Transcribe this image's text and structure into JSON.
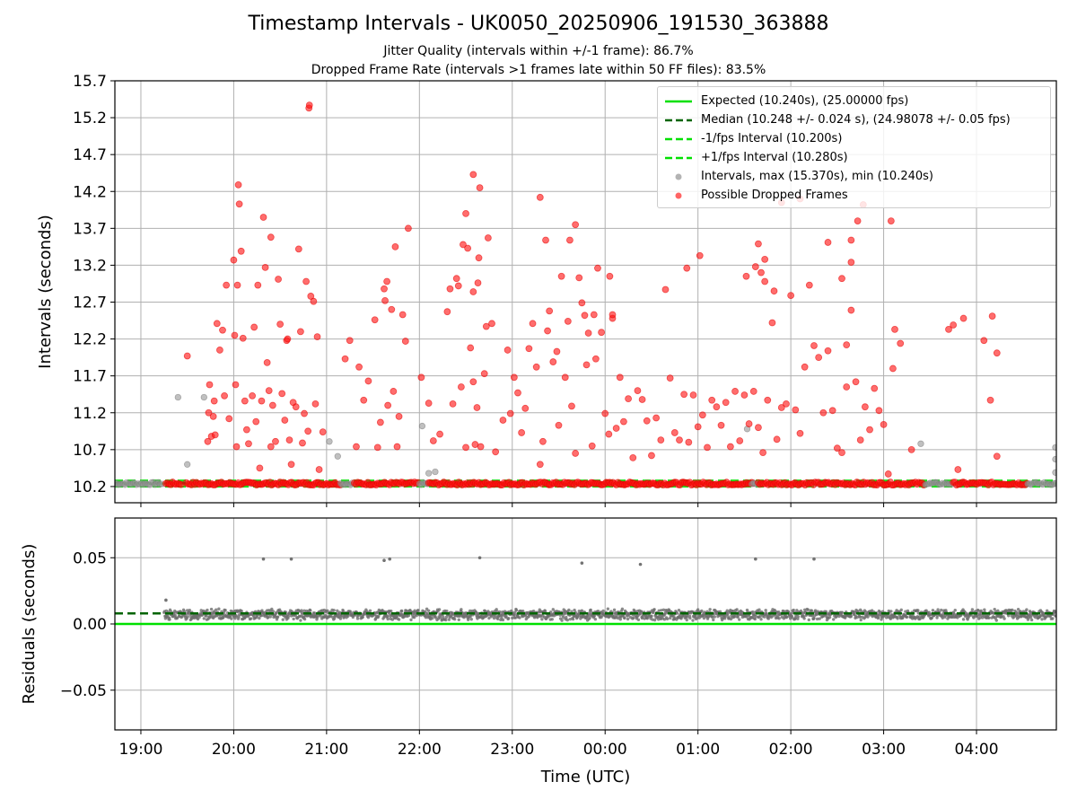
{
  "chart_data": [
    {
      "type": "scatter",
      "title": "Timestamp Intervals - UK0050_20250906_191530_363888",
      "subtitle_lines": [
        "Jitter Quality (intervals within +/-1 frame): 86.7%",
        "Dropped Frame Rate (intervals >1 frames late within 50 FF files): 83.5%"
      ],
      "ylabel": "Intervals (seconds)",
      "ylim": [
        9.98,
        15.7
      ],
      "yticks": [
        "10.2",
        "10.7",
        "11.2",
        "11.7",
        "12.2",
        "12.7",
        "13.2",
        "13.7",
        "14.2",
        "14.7",
        "15.2",
        "15.7"
      ],
      "xlim_hours": [
        18.72,
        28.86
      ],
      "grid": true,
      "legend_position": "upper-right",
      "reference_lines": {
        "expected": 10.24,
        "median": 10.248,
        "minus_1fps": 10.2,
        "plus_1fps": 10.28
      },
      "legend": [
        {
          "label": "Expected (10.240s), (25.00000 fps)",
          "style": "solid-line",
          "color": "#00e000"
        },
        {
          "label": "Median (10.248 +/- 0.024 s), (24.98078 +/- 0.05 fps)",
          "style": "dashed-line",
          "color": "#006400"
        },
        {
          "label": "-1/fps Interval (10.200s)",
          "style": "dashed-line",
          "color": "#00e000"
        },
        {
          "label": "+1/fps Interval (10.280s)",
          "style": "dashed-line",
          "color": "#00e000"
        },
        {
          "label": "Intervals, max (15.370s), min (10.240s)",
          "style": "marker",
          "color": "#9a9a9a"
        },
        {
          "label": "Possible Dropped Frames",
          "style": "marker",
          "color": "#ff3030"
        }
      ],
      "baseline_bands": [
        {
          "kind": "normal",
          "from": 18.72,
          "to": 19.23
        },
        {
          "kind": "dropped",
          "from": 19.27,
          "to": 19.45
        },
        {
          "kind": "dropped",
          "from": 19.49,
          "to": 21.15
        },
        {
          "kind": "normal",
          "from": 21.15,
          "to": 21.3
        },
        {
          "kind": "dropped",
          "from": 21.3,
          "to": 22.0
        },
        {
          "kind": "normal",
          "from": 22.0,
          "to": 22.1
        },
        {
          "kind": "dropped",
          "from": 22.1,
          "to": 23.4
        },
        {
          "kind": "dropped",
          "from": 23.4,
          "to": 25.6
        },
        {
          "kind": "normal",
          "from": 25.58,
          "to": 25.65
        },
        {
          "kind": "dropped",
          "from": 25.65,
          "to": 27.45
        },
        {
          "kind": "normal",
          "from": 27.45,
          "to": 27.75
        },
        {
          "kind": "dropped",
          "from": 27.75,
          "to": 28.55
        },
        {
          "kind": "normal",
          "from": 28.55,
          "to": 28.86
        }
      ],
      "dropped_series": [
        [
          19.5,
          11.97
        ],
        [
          19.72,
          10.81
        ],
        [
          19.73,
          11.2
        ],
        [
          19.74,
          11.58
        ],
        [
          19.76,
          10.88
        ],
        [
          19.78,
          11.15
        ],
        [
          19.79,
          11.36
        ],
        [
          19.8,
          10.9
        ],
        [
          19.82,
          12.41
        ],
        [
          19.85,
          12.05
        ],
        [
          19.88,
          12.32
        ],
        [
          19.9,
          11.43
        ],
        [
          19.92,
          12.93
        ],
        [
          19.95,
          11.12
        ],
        [
          20.0,
          13.27
        ],
        [
          20.01,
          12.25
        ],
        [
          20.02,
          11.58
        ],
        [
          20.03,
          10.74
        ],
        [
          20.04,
          12.93
        ],
        [
          20.05,
          14.29
        ],
        [
          20.06,
          14.03
        ],
        [
          20.08,
          13.39
        ],
        [
          20.1,
          12.21
        ],
        [
          20.12,
          11.36
        ],
        [
          20.14,
          10.97
        ],
        [
          20.16,
          10.78
        ],
        [
          20.2,
          11.43
        ],
        [
          20.22,
          12.36
        ],
        [
          20.24,
          11.08
        ],
        [
          20.26,
          12.93
        ],
        [
          20.3,
          11.36
        ],
        [
          20.32,
          13.85
        ],
        [
          20.34,
          13.17
        ],
        [
          20.36,
          11.88
        ],
        [
          20.38,
          11.5
        ],
        [
          20.4,
          10.74
        ],
        [
          20.42,
          11.3
        ],
        [
          20.45,
          10.81
        ],
        [
          20.48,
          13.01
        ],
        [
          20.5,
          12.4
        ],
        [
          20.52,
          11.46
        ],
        [
          20.55,
          11.1
        ],
        [
          20.57,
          12.18
        ],
        [
          20.6,
          10.83
        ],
        [
          20.62,
          10.5
        ],
        [
          20.64,
          11.34
        ],
        [
          20.67,
          11.28
        ],
        [
          20.7,
          13.42
        ],
        [
          20.72,
          12.3
        ],
        [
          20.74,
          10.79
        ],
        [
          20.76,
          11.19
        ],
        [
          20.78,
          12.98
        ],
        [
          20.8,
          10.95
        ],
        [
          20.83,
          12.78
        ],
        [
          20.86,
          12.71
        ],
        [
          20.88,
          11.32
        ],
        [
          20.9,
          12.23
        ],
        [
          20.4,
          13.58
        ],
        [
          20.58,
          12.2
        ],
        [
          20.28,
          10.45
        ],
        [
          20.92,
          10.43
        ],
        [
          20.96,
          10.94
        ],
        [
          20.81,
          15.33
        ],
        [
          20.815,
          15.37
        ],
        [
          21.2,
          11.93
        ],
        [
          21.25,
          12.18
        ],
        [
          21.32,
          10.74
        ],
        [
          21.35,
          11.82
        ],
        [
          21.4,
          11.37
        ],
        [
          21.45,
          11.63
        ],
        [
          21.52,
          12.46
        ],
        [
          21.58,
          11.07
        ],
        [
          21.62,
          12.88
        ],
        [
          21.66,
          11.3
        ],
        [
          21.7,
          12.6
        ],
        [
          21.72,
          11.49
        ],
        [
          21.74,
          13.45
        ],
        [
          21.78,
          11.15
        ],
        [
          21.82,
          12.53
        ],
        [
          21.85,
          12.17
        ],
        [
          21.88,
          13.7
        ],
        [
          21.55,
          10.73
        ],
        [
          21.76,
          10.74
        ],
        [
          22.1,
          11.33
        ],
        [
          22.15,
          10.82
        ],
        [
          22.22,
          10.91
        ],
        [
          22.3,
          12.57
        ],
        [
          22.33,
          12.88
        ],
        [
          22.36,
          11.32
        ],
        [
          22.4,
          13.02
        ],
        [
          22.42,
          12.92
        ],
        [
          22.45,
          11.55
        ],
        [
          22.47,
          13.48
        ],
        [
          22.5,
          10.73
        ],
        [
          22.52,
          13.43
        ],
        [
          22.55,
          12.08
        ],
        [
          22.58,
          11.62
        ],
        [
          22.6,
          10.77
        ],
        [
          22.62,
          11.27
        ],
        [
          22.64,
          13.3
        ],
        [
          22.66,
          10.74
        ],
        [
          22.7,
          11.73
        ],
        [
          22.72,
          12.37
        ],
        [
          22.74,
          13.57
        ],
        [
          22.78,
          12.41
        ],
        [
          22.82,
          10.67
        ],
        [
          22.9,
          11.1
        ],
        [
          22.95,
          12.05
        ],
        [
          22.98,
          11.19
        ],
        [
          23.02,
          11.68
        ],
        [
          23.06,
          11.47
        ],
        [
          23.1,
          10.93
        ],
        [
          23.14,
          11.26
        ],
        [
          23.18,
          12.07
        ],
        [
          23.22,
          12.41
        ],
        [
          23.26,
          11.82
        ],
        [
          23.3,
          10.5
        ],
        [
          23.33,
          10.81
        ],
        [
          23.36,
          13.54
        ],
        [
          23.4,
          12.58
        ],
        [
          23.44,
          11.89
        ],
        [
          23.48,
          12.03
        ],
        [
          23.5,
          11.03
        ],
        [
          23.53,
          13.05
        ],
        [
          23.57,
          11.68
        ],
        [
          23.6,
          12.44
        ],
        [
          23.64,
          11.29
        ],
        [
          23.68,
          10.65
        ],
        [
          23.72,
          13.03
        ],
        [
          23.75,
          12.69
        ],
        [
          23.78,
          12.52
        ],
        [
          23.8,
          11.85
        ],
        [
          23.82,
          12.28
        ],
        [
          23.86,
          10.75
        ],
        [
          23.9,
          11.93
        ],
        [
          23.92,
          13.16
        ],
        [
          23.96,
          12.29
        ],
        [
          24.0,
          11.19
        ],
        [
          24.04,
          10.91
        ],
        [
          24.08,
          12.48
        ],
        [
          24.12,
          10.99
        ],
        [
          24.16,
          11.68
        ],
        [
          24.2,
          11.08
        ],
        [
          24.25,
          11.39
        ],
        [
          24.3,
          10.59
        ],
        [
          24.35,
          11.5
        ],
        [
          24.4,
          11.38
        ],
        [
          24.45,
          11.09
        ],
        [
          24.5,
          10.62
        ],
        [
          24.55,
          11.13
        ],
        [
          24.6,
          10.83
        ],
        [
          24.65,
          12.87
        ],
        [
          24.7,
          11.67
        ],
        [
          24.75,
          10.93
        ],
        [
          24.8,
          10.83
        ],
        [
          24.85,
          11.45
        ],
        [
          24.9,
          10.8
        ],
        [
          24.95,
          11.44
        ],
        [
          25.0,
          11.01
        ],
        [
          25.05,
          11.17
        ],
        [
          25.1,
          10.73
        ],
        [
          25.15,
          11.37
        ],
        [
          25.2,
          11.28
        ],
        [
          25.25,
          11.03
        ],
        [
          25.3,
          11.34
        ],
        [
          25.35,
          10.74
        ],
        [
          25.4,
          11.49
        ],
        [
          25.45,
          10.82
        ],
        [
          25.5,
          11.44
        ],
        [
          25.55,
          11.05
        ],
        [
          25.6,
          11.49
        ],
        [
          25.65,
          11.0
        ],
        [
          25.7,
          10.66
        ],
        [
          25.75,
          11.37
        ],
        [
          25.8,
          12.42
        ],
        [
          25.85,
          10.84
        ],
        [
          25.9,
          11.27
        ],
        [
          25.95,
          11.32
        ],
        [
          26.0,
          12.79
        ],
        [
          26.05,
          11.24
        ],
        [
          26.1,
          10.92
        ],
        [
          26.15,
          11.82
        ],
        [
          26.2,
          12.93
        ],
        [
          26.25,
          12.11
        ],
        [
          26.3,
          11.95
        ],
        [
          26.35,
          11.2
        ],
        [
          26.4,
          12.04
        ],
        [
          26.45,
          11.23
        ],
        [
          26.5,
          10.72
        ],
        [
          26.55,
          10.66
        ],
        [
          26.6,
          11.55
        ],
        [
          26.65,
          12.59
        ],
        [
          26.7,
          11.62
        ],
        [
          26.75,
          10.83
        ],
        [
          26.8,
          11.28
        ],
        [
          26.85,
          10.97
        ],
        [
          26.9,
          11.53
        ],
        [
          26.95,
          11.23
        ],
        [
          27.0,
          11.04
        ],
        [
          27.05,
          10.37
        ],
        [
          27.1,
          11.8
        ],
        [
          27.12,
          12.33
        ],
        [
          27.18,
          12.14
        ],
        [
          27.3,
          10.7
        ],
        [
          27.7,
          12.33
        ],
        [
          27.75,
          12.39
        ],
        [
          27.8,
          10.43
        ],
        [
          27.86,
          12.48
        ],
        [
          28.08,
          12.18
        ],
        [
          28.15,
          11.37
        ],
        [
          28.17,
          12.51
        ],
        [
          28.22,
          12.01
        ],
        [
          28.22,
          10.61
        ],
        [
          24.08,
          12.53
        ],
        [
          24.05,
          13.05
        ],
        [
          23.88,
          12.53
        ],
        [
          23.38,
          12.31
        ],
        [
          22.63,
          12.96
        ],
        [
          22.58,
          12.84
        ],
        [
          23.68,
          13.75
        ],
        [
          23.62,
          13.54
        ],
        [
          24.88,
          13.16
        ],
        [
          25.52,
          13.05
        ],
        [
          25.65,
          13.49
        ],
        [
          25.72,
          12.98
        ],
        [
          25.82,
          12.85
        ],
        [
          26.4,
          13.51
        ],
        [
          26.55,
          13.02
        ],
        [
          26.6,
          12.12
        ],
        [
          26.65,
          13.24
        ],
        [
          26.65,
          13.54
        ],
        [
          27.08,
          13.8
        ],
        [
          26.78,
          14.02
        ],
        [
          26.72,
          13.8
        ],
        [
          26.1,
          14.1
        ],
        [
          25.9,
          14.05
        ],
        [
          25.72,
          13.28
        ],
        [
          25.68,
          13.1
        ],
        [
          25.62,
          13.18
        ],
        [
          25.02,
          13.33
        ],
        [
          22.5,
          13.9
        ],
        [
          22.58,
          14.43
        ],
        [
          22.65,
          14.25
        ],
        [
          23.3,
          14.12
        ],
        [
          21.65,
          12.98
        ],
        [
          21.63,
          12.72
        ],
        [
          22.02,
          11.68
        ]
      ],
      "normal_outliers": [
        [
          19.4,
          11.41
        ],
        [
          19.5,
          10.5
        ],
        [
          19.68,
          11.41
        ],
        [
          21.03,
          10.81
        ],
        [
          21.12,
          10.61
        ],
        [
          22.03,
          11.02
        ],
        [
          22.1,
          10.38
        ],
        [
          22.17,
          10.4
        ],
        [
          25.53,
          10.98
        ],
        [
          27.4,
          10.78
        ],
        [
          28.85,
          10.73
        ],
        [
          28.85,
          10.57
        ],
        [
          28.85,
          10.39
        ]
      ]
    },
    {
      "type": "scatter",
      "ylabel": "Residuals (seconds)",
      "xlabel": "Time (UTC)",
      "ylim": [
        -0.08,
        0.08
      ],
      "yticks": [
        "0.05",
        "0.00",
        "−0.05"
      ],
      "xlim_hours": [
        18.72,
        28.86
      ],
      "xticks": [
        "19:00",
        "20:00",
        "21:00",
        "22:00",
        "23:00",
        "00:00",
        "01:00",
        "02:00",
        "03:00",
        "04:00"
      ],
      "expected_line": 0.0,
      "median_line": 0.008,
      "residual_band": {
        "from": 19.25,
        "to": 28.86,
        "center": 0.007,
        "spread": 0.006
      },
      "outliers": [
        [
          19.27,
          0.018
        ],
        [
          20.32,
          0.049
        ],
        [
          20.62,
          0.049
        ],
        [
          21.62,
          0.048
        ],
        [
          21.68,
          0.049
        ],
        [
          22.65,
          0.05
        ],
        [
          23.75,
          0.046
        ],
        [
          24.38,
          0.045
        ],
        [
          25.62,
          0.049
        ],
        [
          26.25,
          0.049
        ]
      ]
    }
  ]
}
